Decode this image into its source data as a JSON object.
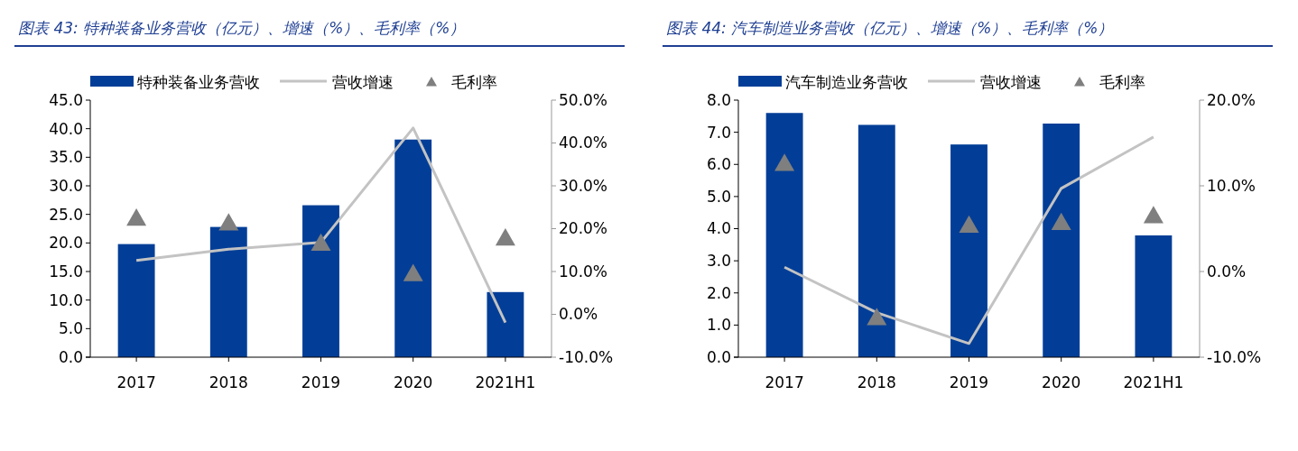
{
  "chart_data": [
    {
      "type": "bar",
      "title": "图表 43: 特种装备业务营收（亿元）、增速（%）、毛利率（%）",
      "categories": [
        "2017",
        "2018",
        "2019",
        "2020",
        "2021H1"
      ],
      "series": [
        {
          "name": "特种装备业务营收",
          "color": "#023e97",
          "values": [
            19.8,
            22.8,
            26.6,
            38.1,
            11.4
          ]
        },
        {
          "name": "营收增速",
          "type": "line",
          "axis": "y2",
          "color": "#c3c3c3",
          "values": [
            12.6,
            15.2,
            16.8,
            43.5,
            -1.9
          ]
        },
        {
          "name": "毛利率",
          "type": "scatter",
          "axis": "y2",
          "marker": "triangle",
          "color": "#7f7f7f",
          "values": [
            22.4,
            21.3,
            16.6,
            9.5,
            17.8
          ]
        }
      ],
      "ylim": [
        0,
        45
      ],
      "yticks": [
        {
          "value": 0,
          "label": "0.0"
        },
        {
          "value": 5,
          "label": "5.0"
        },
        {
          "value": 10,
          "label": "10.0"
        },
        {
          "value": 15,
          "label": "15.0"
        },
        {
          "value": 20,
          "label": "20.0"
        },
        {
          "value": 25,
          "label": "25.0"
        },
        {
          "value": 30,
          "label": "30.0"
        },
        {
          "value": 35,
          "label": "35.0"
        },
        {
          "value": 40,
          "label": "40.0"
        },
        {
          "value": 45,
          "label": "45.0"
        }
      ],
      "y2lim": [
        -10,
        50
      ],
      "y2ticks": [
        {
          "value": -10,
          "label": "-10.0%"
        },
        {
          "value": 0,
          "label": "0.0%"
        },
        {
          "value": 10,
          "label": "10.0%"
        },
        {
          "value": 20,
          "label": "20.0%"
        },
        {
          "value": 30,
          "label": "30.0%"
        },
        {
          "value": 40,
          "label": "40.0%"
        },
        {
          "value": 50,
          "label": "50.0%"
        }
      ],
      "grid": false,
      "legend": "top"
    },
    {
      "type": "bar",
      "title": "图表 44: 汽车制造业务营收（亿元）、增速（%）、毛利率（%）",
      "categories": [
        "2017",
        "2018",
        "2019",
        "2020",
        "2021H1"
      ],
      "series": [
        {
          "name": "汽车制造业务营收",
          "color": "#023e97",
          "values": [
            7.6,
            7.23,
            6.62,
            7.27,
            3.79
          ]
        },
        {
          "name": "营收增速",
          "type": "line",
          "axis": "y2",
          "color": "#c3c3c3",
          "values": [
            0.5,
            -4.8,
            -8.4,
            9.7,
            15.7
          ]
        },
        {
          "name": "毛利率",
          "type": "scatter",
          "axis": "y2",
          "marker": "triangle",
          "color": "#7f7f7f",
          "values": [
            12.6,
            -5.4,
            5.4,
            5.7,
            6.5
          ]
        }
      ],
      "ylim": [
        0,
        8
      ],
      "yticks": [
        {
          "value": 0,
          "label": "0.0"
        },
        {
          "value": 1,
          "label": "1.0"
        },
        {
          "value": 2,
          "label": "2.0"
        },
        {
          "value": 3,
          "label": "3.0"
        },
        {
          "value": 4,
          "label": "4.0"
        },
        {
          "value": 5,
          "label": "5.0"
        },
        {
          "value": 6,
          "label": "6.0"
        },
        {
          "value": 7,
          "label": "7.0"
        },
        {
          "value": 8,
          "label": "8.0"
        }
      ],
      "y2lim": [
        -10,
        20
      ],
      "y2ticks": [
        {
          "value": -10,
          "label": "-10.0%"
        },
        {
          "value": 0,
          "label": "0.0%"
        },
        {
          "value": 10,
          "label": "10.0%"
        },
        {
          "value": 20,
          "label": "20.0%"
        }
      ],
      "grid": false,
      "legend": "top"
    }
  ]
}
